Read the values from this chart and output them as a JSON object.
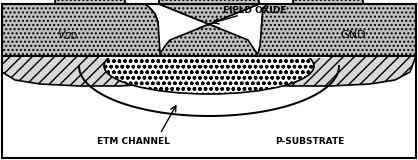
{
  "fig_width": 4.18,
  "fig_height": 1.6,
  "dpi": 100,
  "bg": "#ffffff",
  "black": "#000000",
  "dot_fill": "#c0c0c0",
  "hatch_fill": "#d8d8d8",
  "etm_fill": "#e8e8e8",
  "text_vdd": "V",
  "text_vdd_sub": "DD",
  "text_gnd": "GND",
  "text_field_oxide": "FIELD OXIDE",
  "text_etm_channel": "ETM CHANNEL",
  "text_p_substrate": "P-SUBSTRATE"
}
